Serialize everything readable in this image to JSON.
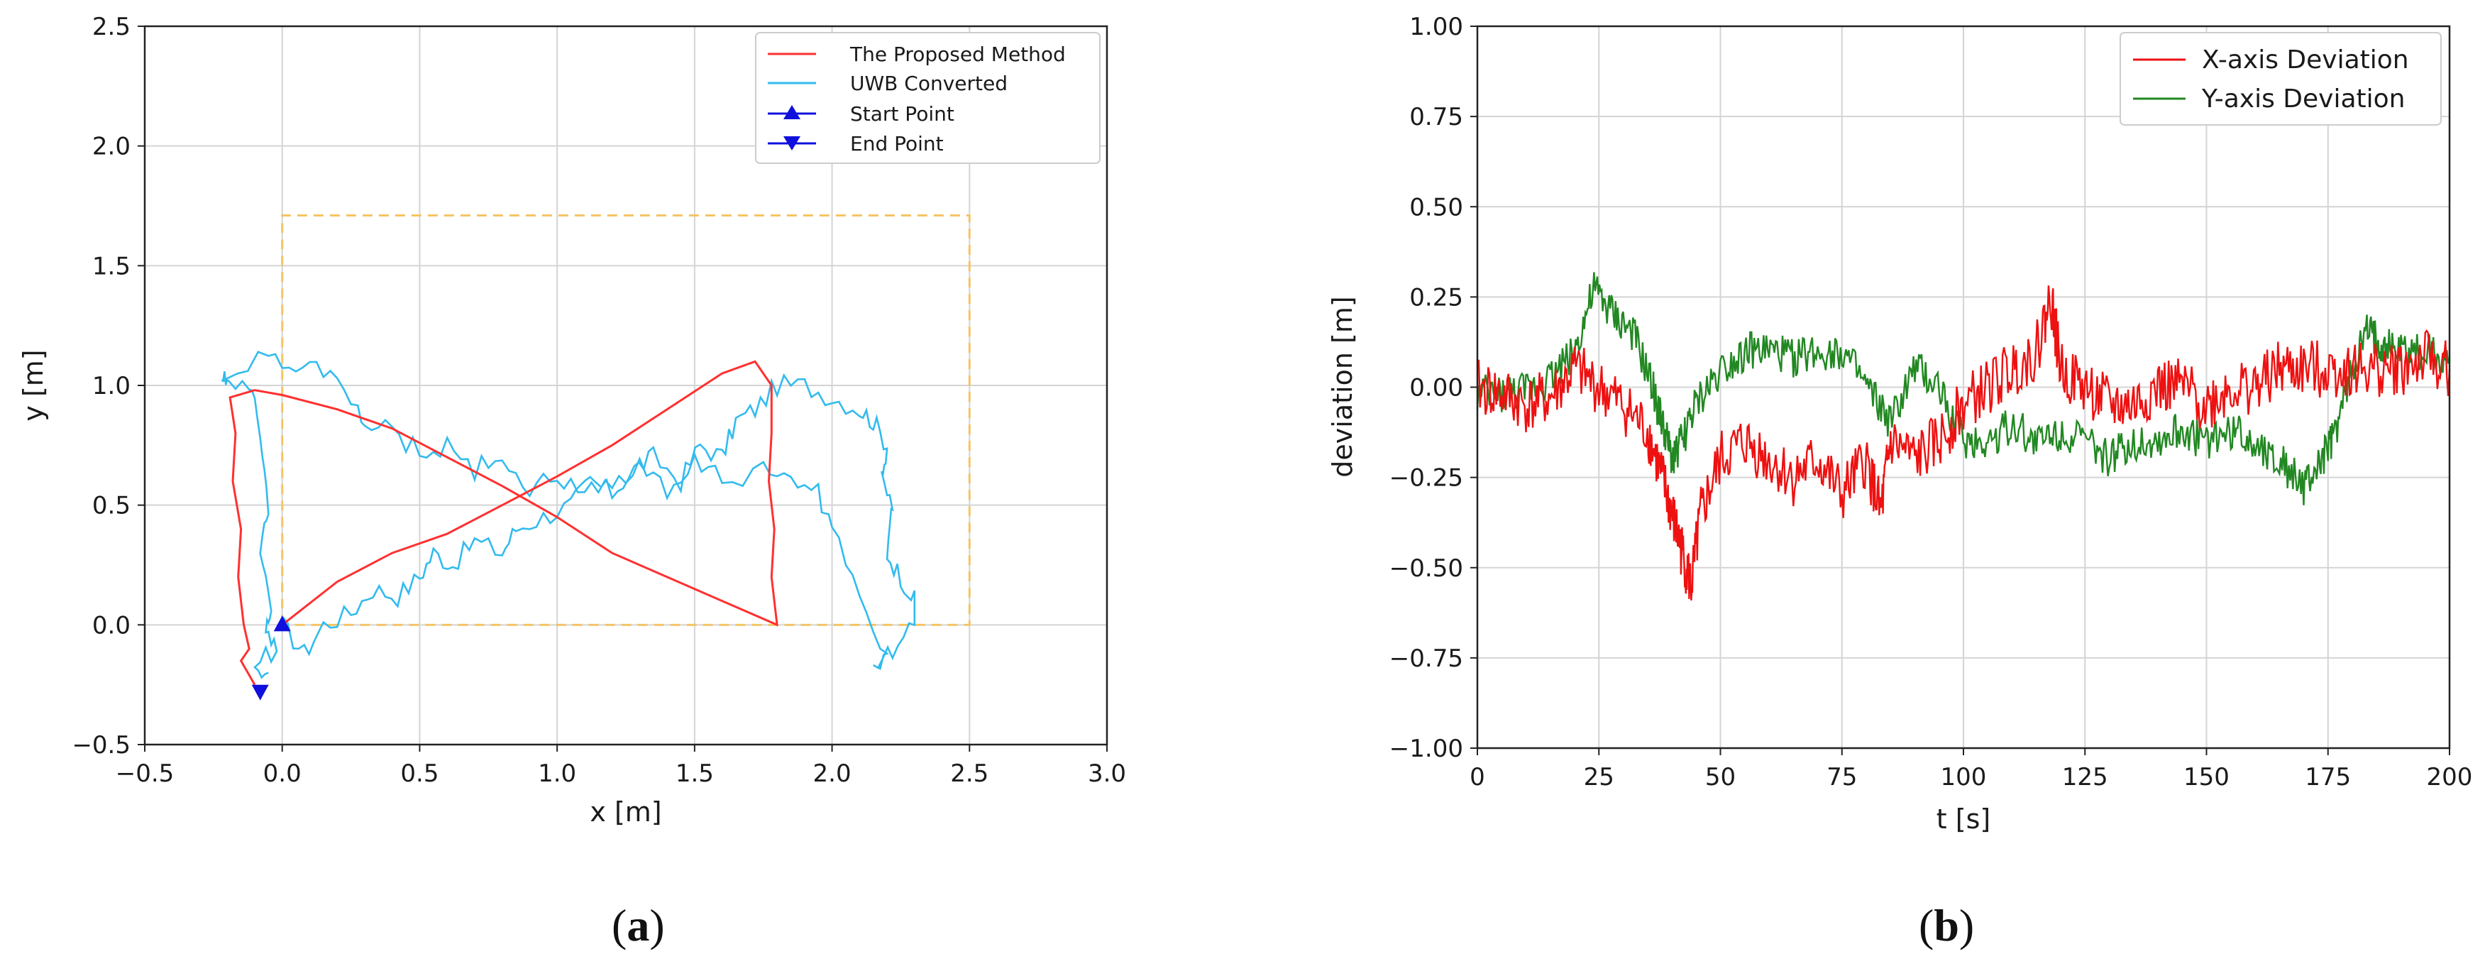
{
  "chart_data": [
    {
      "type": "line",
      "xlabel": "x [m]",
      "ylabel": "y [m]",
      "xlim": [
        -0.5,
        3.0
      ],
      "ylim": [
        -0.5,
        2.5
      ],
      "xticks": [
        "−0.5",
        "0.0",
        "0.5",
        "1.0",
        "1.5",
        "2.0",
        "2.5",
        "3.0"
      ],
      "yticks": [
        "−0.5",
        "0.0",
        "0.5",
        "1.0",
        "1.5",
        "2.0",
        "2.5"
      ],
      "grid": true,
      "legend_position": "top-right",
      "legend": [
        "The Proposed Method",
        "UWB Converted",
        "Start Point",
        "End Point"
      ],
      "caption": "a",
      "colors": {
        "proposed": "#ff3030",
        "uwb": "#33bbee",
        "reference": "#f5c466",
        "marker": "#1010dd"
      },
      "reference_rect": {
        "x": [
          0.0,
          2.5
        ],
        "y": [
          0.0,
          1.71
        ]
      },
      "series": [
        {
          "name": "The Proposed Method",
          "x": [
            0.0,
            0.2,
            0.4,
            0.6,
            0.8,
            1.0,
            1.2,
            1.4,
            1.6,
            1.72,
            1.78,
            1.78,
            1.77,
            1.79,
            1.78,
            1.8,
            1.8,
            1.6,
            1.4,
            1.2,
            1.0,
            0.8,
            0.6,
            0.4,
            0.2,
            0.0,
            -0.1,
            -0.19,
            -0.17,
            -0.18,
            -0.15,
            -0.16,
            -0.14,
            -0.12,
            -0.15,
            -0.1
          ],
          "y": [
            0.0,
            0.18,
            0.3,
            0.38,
            0.5,
            0.62,
            0.75,
            0.9,
            1.05,
            1.1,
            1.0,
            0.8,
            0.6,
            0.4,
            0.2,
            0.0,
            0.0,
            0.1,
            0.2,
            0.3,
            0.45,
            0.58,
            0.7,
            0.82,
            0.9,
            0.96,
            0.98,
            0.95,
            0.8,
            0.6,
            0.4,
            0.2,
            0.0,
            -0.1,
            -0.15,
            -0.25
          ]
        },
        {
          "name": "UWB Converted",
          "x": [
            0.0,
            0.08,
            0.15,
            0.25,
            0.33,
            0.42,
            0.5,
            0.55,
            0.62,
            0.7,
            0.8,
            0.85,
            0.95,
            1.05,
            1.12,
            1.2,
            1.28,
            1.35,
            1.45,
            1.52,
            1.6,
            1.65,
            1.72,
            1.8,
            1.9,
            2.0,
            2.1,
            2.15,
            2.2,
            2.18,
            2.22,
            2.2,
            2.25,
            2.3,
            2.3,
            2.22,
            2.15,
            2.2,
            2.1,
            2.0,
            1.95,
            1.85,
            1.75,
            1.6,
            1.5,
            1.4,
            1.3,
            1.2,
            1.1,
            1.0,
            0.9,
            0.8,
            0.7,
            0.6,
            0.5,
            0.4,
            0.3,
            0.25,
            0.15,
            0.05,
            -0.05,
            -0.2,
            -0.22,
            -0.12,
            -0.08,
            -0.05,
            -0.08,
            -0.04,
            -0.06,
            -0.02,
            -0.1,
            -0.05
          ],
          "y": [
            0.0,
            -0.12,
            0.0,
            0.05,
            0.15,
            0.12,
            0.2,
            0.3,
            0.25,
            0.35,
            0.3,
            0.4,
            0.45,
            0.5,
            0.6,
            0.55,
            0.65,
            0.7,
            0.6,
            0.75,
            0.7,
            0.85,
            0.9,
            1.0,
            1.0,
            0.95,
            0.9,
            0.85,
            0.75,
            0.6,
            0.5,
            0.3,
            0.2,
            0.1,
            0.0,
            -0.1,
            -0.2,
            -0.15,
            0.1,
            0.4,
            0.55,
            0.6,
            0.65,
            0.6,
            0.7,
            0.55,
            0.65,
            0.6,
            0.55,
            0.62,
            0.58,
            0.7,
            0.65,
            0.75,
            0.72,
            0.8,
            0.85,
            0.95,
            1.05,
            1.1,
            1.12,
            1.05,
            1.0,
            1.02,
            0.8,
            0.5,
            0.3,
            0.1,
            -0.05,
            -0.1,
            -0.15,
            -0.2
          ]
        }
      ],
      "start_point": [
        0.0,
        0.0
      ],
      "end_point": [
        -0.08,
        -0.28
      ]
    },
    {
      "type": "line",
      "xlabel": "t [s]",
      "ylabel": "deviation [m]",
      "xlim": [
        0,
        200
      ],
      "ylim": [
        -1.0,
        1.0
      ],
      "xticks": [
        "0",
        "25",
        "50",
        "75",
        "100",
        "125",
        "150",
        "175",
        "200"
      ],
      "yticks": [
        "−1.00",
        "−0.75",
        "−0.50",
        "−0.25",
        "0.00",
        "0.25",
        "0.50",
        "0.75",
        "1.00"
      ],
      "grid": true,
      "legend_position": "top-right",
      "legend": [
        "X-axis Deviation",
        "Y-axis Deviation"
      ],
      "caption": "b",
      "colors": {
        "x": "#ee1111",
        "y": "#228822"
      },
      "series": [
        {
          "name": "X-axis Deviation",
          "x": [
            0,
            5,
            10,
            15,
            20,
            25,
            30,
            35,
            38,
            40,
            42,
            44,
            46,
            50,
            55,
            60,
            65,
            70,
            75,
            80,
            83,
            85,
            90,
            95,
            100,
            105,
            110,
            115,
            118,
            120,
            125,
            130,
            135,
            140,
            145,
            150,
            155,
            160,
            165,
            170,
            175,
            180,
            185,
            190,
            195,
            200
          ],
          "y": [
            0.0,
            -0.02,
            -0.05,
            -0.03,
            0.05,
            0.0,
            -0.05,
            -0.12,
            -0.25,
            -0.35,
            -0.45,
            -0.55,
            -0.35,
            -0.2,
            -0.15,
            -0.2,
            -0.25,
            -0.2,
            -0.3,
            -0.2,
            -0.35,
            -0.15,
            -0.2,
            -0.15,
            -0.05,
            0.0,
            0.05,
            0.1,
            0.25,
            0.05,
            0.0,
            -0.05,
            -0.05,
            0.0,
            0.0,
            -0.05,
            0.0,
            0.0,
            0.05,
            0.05,
            0.05,
            0.05,
            0.05,
            0.05,
            0.08,
            0.05
          ]
        },
        {
          "name": "Y-axis Deviation",
          "x": [
            0,
            5,
            10,
            15,
            20,
            24,
            28,
            32,
            36,
            38,
            40,
            42,
            45,
            50,
            55,
            60,
            65,
            70,
            75,
            80,
            85,
            90,
            95,
            100,
            105,
            110,
            115,
            120,
            125,
            130,
            135,
            140,
            145,
            150,
            155,
            160,
            165,
            170,
            173,
            176,
            180,
            183,
            186,
            190,
            195,
            200
          ],
          "y": [
            -0.02,
            -0.02,
            -0.01,
            0.03,
            0.1,
            0.27,
            0.2,
            0.15,
            0.0,
            -0.1,
            -0.2,
            -0.15,
            -0.05,
            0.05,
            0.1,
            0.1,
            0.08,
            0.1,
            0.1,
            0.0,
            -0.1,
            0.05,
            0.0,
            -0.15,
            -0.15,
            -0.1,
            -0.15,
            -0.12,
            -0.15,
            -0.2,
            -0.15,
            -0.15,
            -0.12,
            -0.15,
            -0.12,
            -0.15,
            -0.2,
            -0.28,
            -0.22,
            -0.15,
            0.05,
            0.15,
            0.12,
            0.1,
            0.1,
            0.08
          ]
        }
      ]
    }
  ]
}
